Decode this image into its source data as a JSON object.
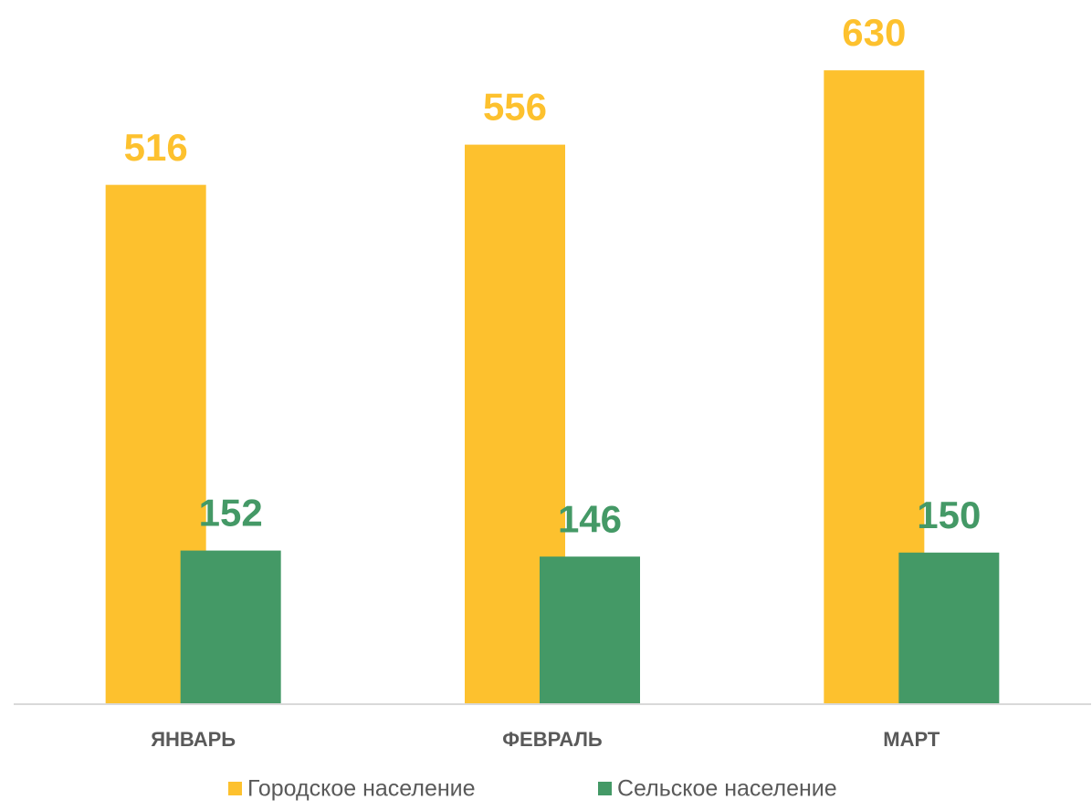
{
  "chart_data": {
    "type": "bar",
    "categories": [
      "ЯНВАРЬ",
      "ФЕВРАЛЬ",
      "МАРТ"
    ],
    "series": [
      {
        "name": "Городское население",
        "color": "#FDC12E",
        "values": [
          516,
          556,
          630
        ]
      },
      {
        "name": "Сельское население",
        "color": "#449966",
        "values": [
          152,
          146,
          150
        ]
      }
    ],
    "ylim": [
      0,
      700
    ]
  }
}
